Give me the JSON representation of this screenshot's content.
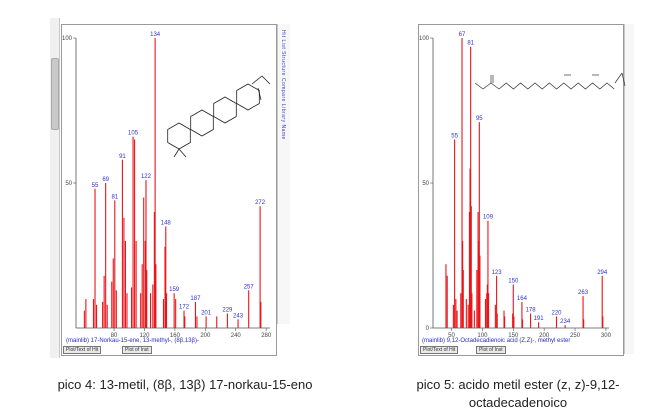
{
  "chart_data": [
    {
      "type": "bar",
      "title": "",
      "xlabel": "",
      "ylabel": "",
      "xlim": [
        30,
        285
      ],
      "ylim": [
        0,
        100
      ],
      "xticks": [
        "80",
        "120",
        "160",
        "200",
        "240",
        "280"
      ],
      "yticks": [
        "50",
        "100"
      ],
      "footer_text": "(mainlib) 17-Norkau-15-ene, 13-methyl-, (8β,13β)-",
      "peak_labels": [
        {
          "x": 55,
          "y": 48,
          "label": "55"
        },
        {
          "x": 69,
          "y": 50,
          "label": "69"
        },
        {
          "x": 81,
          "y": 44,
          "label": "81"
        },
        {
          "x": 91,
          "y": 58,
          "label": "91"
        },
        {
          "x": 105,
          "y": 66,
          "label": "105"
        },
        {
          "x": 122,
          "y": 51,
          "label": "122"
        },
        {
          "x": 134,
          "y": 100,
          "label": "134"
        },
        {
          "x": 148,
          "y": 35,
          "label": "148"
        },
        {
          "x": 159,
          "y": 12,
          "label": "159"
        },
        {
          "x": 172,
          "y": 6,
          "label": "172"
        },
        {
          "x": 187,
          "y": 9,
          "label": "187"
        },
        {
          "x": 201,
          "y": 4,
          "label": "201"
        },
        {
          "x": 229,
          "y": 5,
          "label": "229"
        },
        {
          "x": 243,
          "y": 3,
          "label": "243"
        },
        {
          "x": 257,
          "y": 13,
          "label": "257"
        },
        {
          "x": 272,
          "y": 42,
          "label": "272"
        }
      ],
      "peaks": [
        [
          41,
          6
        ],
        [
          43,
          10
        ],
        [
          53,
          10
        ],
        [
          55,
          48
        ],
        [
          57,
          8
        ],
        [
          65,
          9
        ],
        [
          67,
          18
        ],
        [
          69,
          50
        ],
        [
          71,
          8
        ],
        [
          77,
          16
        ],
        [
          79,
          24
        ],
        [
          81,
          44
        ],
        [
          83,
          13
        ],
        [
          91,
          58
        ],
        [
          93,
          38
        ],
        [
          95,
          30
        ],
        [
          97,
          12
        ],
        [
          103,
          14
        ],
        [
          105,
          66
        ],
        [
          107,
          65
        ],
        [
          109,
          30
        ],
        [
          115,
          12
        ],
        [
          117,
          22
        ],
        [
          119,
          45
        ],
        [
          121,
          30
        ],
        [
          122,
          51
        ],
        [
          123,
          20
        ],
        [
          128,
          12
        ],
        [
          131,
          15
        ],
        [
          133,
          40
        ],
        [
          134,
          100
        ],
        [
          135,
          22
        ],
        [
          145,
          10
        ],
        [
          147,
          28
        ],
        [
          148,
          35
        ],
        [
          149,
          12
        ],
        [
          159,
          12
        ],
        [
          161,
          10
        ],
        [
          172,
          6
        ],
        [
          173,
          4
        ],
        [
          187,
          9
        ],
        [
          189,
          4
        ],
        [
          201,
          4
        ],
        [
          215,
          4
        ],
        [
          229,
          5
        ],
        [
          243,
          3
        ],
        [
          257,
          13
        ],
        [
          272,
          42
        ],
        [
          273,
          9
        ]
      ]
    },
    {
      "type": "bar",
      "title": "",
      "xlabel": "",
      "ylabel": "",
      "xlim": [
        20,
        305
      ],
      "ylim": [
        0,
        100
      ],
      "xticks": [
        "50",
        "100",
        "150",
        "200",
        "250",
        "300"
      ],
      "yticks": [
        "0",
        "50",
        "100"
      ],
      "footer_text": "(mainlib) 9,12-Octadecadienoic acid (Z,Z)-, methyl ester",
      "peak_labels": [
        {
          "x": 55,
          "y": 65,
          "label": "55"
        },
        {
          "x": 67,
          "y": 100,
          "label": "67"
        },
        {
          "x": 81,
          "y": 97,
          "label": "81"
        },
        {
          "x": 95,
          "y": 71,
          "label": "95"
        },
        {
          "x": 109,
          "y": 37,
          "label": "109"
        },
        {
          "x": 123,
          "y": 18,
          "label": "123"
        },
        {
          "x": 150,
          "y": 15,
          "label": "150"
        },
        {
          "x": 164,
          "y": 9,
          "label": "164"
        },
        {
          "x": 178,
          "y": 5,
          "label": "178"
        },
        {
          "x": 191,
          "y": 2,
          "label": "191"
        },
        {
          "x": 220,
          "y": 4,
          "label": "220"
        },
        {
          "x": 234,
          "y": 1,
          "label": "234"
        },
        {
          "x": 263,
          "y": 11,
          "label": "263"
        },
        {
          "x": 294,
          "y": 18,
          "label": "294"
        }
      ],
      "peaks": [
        [
          41,
          22
        ],
        [
          43,
          18
        ],
        [
          53,
          8
        ],
        [
          55,
          65
        ],
        [
          57,
          10
        ],
        [
          59,
          6
        ],
        [
          65,
          12
        ],
        [
          67,
          100
        ],
        [
          68,
          30
        ],
        [
          69,
          20
        ],
        [
          74,
          10
        ],
        [
          77,
          8
        ],
        [
          79,
          40
        ],
        [
          80,
          55
        ],
        [
          81,
          97
        ],
        [
          82,
          42
        ],
        [
          83,
          12
        ],
        [
          87,
          6
        ],
        [
          91,
          20
        ],
        [
          93,
          40
        ],
        [
          94,
          30
        ],
        [
          95,
          71
        ],
        [
          96,
          25
        ],
        [
          105,
          10
        ],
        [
          107,
          12
        ],
        [
          108,
          15
        ],
        [
          109,
          37
        ],
        [
          110,
          12
        ],
        [
          121,
          8
        ],
        [
          123,
          18
        ],
        [
          124,
          5
        ],
        [
          135,
          6
        ],
        [
          136,
          4
        ],
        [
          149,
          5
        ],
        [
          150,
          15
        ],
        [
          151,
          4
        ],
        [
          164,
          9
        ],
        [
          165,
          3
        ],
        [
          178,
          5
        ],
        [
          191,
          2
        ],
        [
          220,
          4
        ],
        [
          234,
          1
        ],
        [
          263,
          11
        ],
        [
          264,
          3
        ],
        [
          294,
          18
        ],
        [
          295,
          4
        ]
      ]
    }
  ],
  "tabs": {
    "left": [
      "Plot/Text of Hit",
      "Plot of Inst"
    ],
    "right": [
      "Plot/Text of Hit",
      "Plot of Inst"
    ]
  },
  "sidebar_left": "Hit List Structure Compare Library Name",
  "captions": {
    "left": "pico 4: 13-metil, (8β, 13β) 17-norkau-15-eno",
    "right_line1": "pico 5: acido metil ester (z, z)-9,12-",
    "right_line2": "octadecadenoico"
  },
  "colors": {
    "peak": "#e8161b",
    "label": "#2f2fd0",
    "axis": "#555555"
  }
}
